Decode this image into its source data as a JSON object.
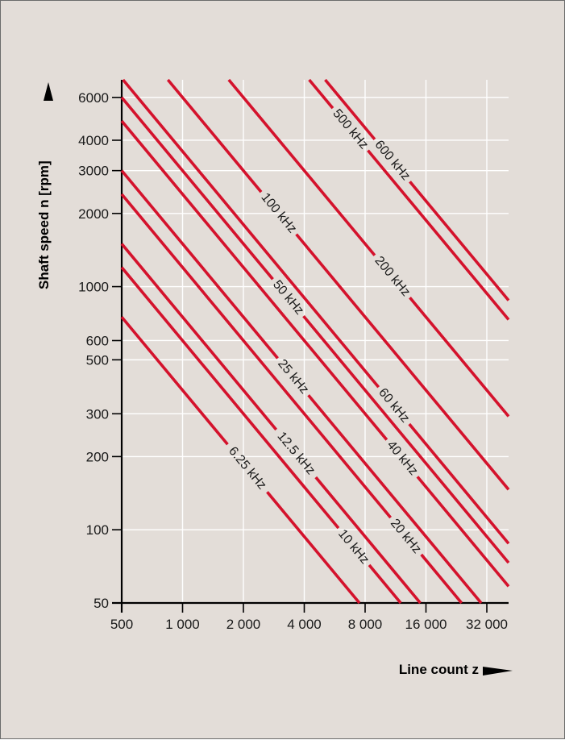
{
  "chart_data": {
    "type": "line",
    "title": "",
    "xlabel": "Line count z",
    "ylabel": "Shaft speed n [rpm]",
    "x_scale": "log",
    "y_scale": "log",
    "xlim": [
      500,
      42000
    ],
    "ylim": [
      50,
      7500
    ],
    "grid": true,
    "x_ticks": [
      {
        "value": 500,
        "label": "500"
      },
      {
        "value": 1000,
        "label": "1 000"
      },
      {
        "value": 2000,
        "label": "2 000"
      },
      {
        "value": 4000,
        "label": "4 000"
      },
      {
        "value": 8000,
        "label": "8 000"
      },
      {
        "value": 16000,
        "label": "16 000"
      },
      {
        "value": 32000,
        "label": "32 000"
      }
    ],
    "y_ticks": [
      {
        "value": 50,
        "label": "50"
      },
      {
        "value": 100,
        "label": "100"
      },
      {
        "value": 200,
        "label": "200"
      },
      {
        "value": 300,
        "label": "300"
      },
      {
        "value": 500,
        "label": "500"
      },
      {
        "value": 600,
        "label": "600"
      },
      {
        "value": 1000,
        "label": "1000"
      },
      {
        "value": 2000,
        "label": "2000"
      },
      {
        "value": 3000,
        "label": "3000"
      },
      {
        "value": 4000,
        "label": "4000"
      },
      {
        "value": 6000,
        "label": "6000"
      }
    ],
    "series": [
      {
        "name": "6.25 kHz",
        "frequency_hz": 6250,
        "label_at": {
          "x": 2090,
          "y": 179
        }
      },
      {
        "name": "10 kHz",
        "frequency_hz": 10000,
        "label_at": {
          "x": 7000,
          "y": 85
        }
      },
      {
        "name": "12.5 kHz",
        "frequency_hz": 12500,
        "label_at": {
          "x": 3640,
          "y": 206
        }
      },
      {
        "name": "20 kHz",
        "frequency_hz": 20000,
        "label_at": {
          "x": 12700,
          "y": 94
        }
      },
      {
        "name": "25 kHz",
        "frequency_hz": 25000,
        "label_at": {
          "x": 3520,
          "y": 426
        }
      },
      {
        "name": "40 kHz",
        "frequency_hz": 40000,
        "label_at": {
          "x": 12200,
          "y": 197
        }
      },
      {
        "name": "50 kHz",
        "frequency_hz": 50000,
        "label_at": {
          "x": 3330,
          "y": 901
        }
      },
      {
        "name": "60 kHz",
        "frequency_hz": 60000,
        "label_at": {
          "x": 11100,
          "y": 324
        }
      },
      {
        "name": "100 kHz",
        "frequency_hz": 100000,
        "label_at": {
          "x": 2990,
          "y": 2005
        }
      },
      {
        "name": "200 kHz",
        "frequency_hz": 200000,
        "label_at": {
          "x": 10900,
          "y": 1101
        }
      },
      {
        "name": "500 kHz",
        "frequency_hz": 500000,
        "label_at": {
          "x": 6760,
          "y": 4435
        }
      },
      {
        "name": "600 kHz",
        "frequency_hz": 600000,
        "label_at": {
          "x": 10900,
          "y": 3302
        }
      }
    ],
    "line_color": "#d4122c",
    "grid_color": "#ffffff",
    "background_color": "#e3ddd8"
  }
}
